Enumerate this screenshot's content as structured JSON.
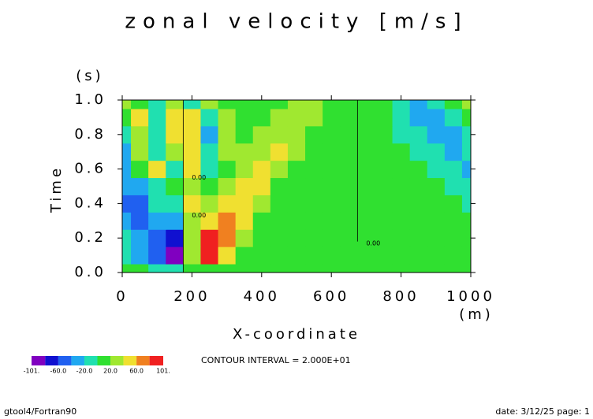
{
  "chart_data": {
    "type": "contour",
    "title": "zonal velocity [m/s]",
    "x_label": "X-coordinate",
    "x_unit": "(m)",
    "y_label": "Time",
    "y_unit": "(s)",
    "xlim": [
      0,
      1000
    ],
    "xticks": [
      0,
      200,
      400,
      600,
      800,
      1000
    ],
    "ylim": [
      0,
      1
    ],
    "yticks": [
      {
        "value": 0,
        "label": "0.0"
      },
      {
        "value": 0.2,
        "label": "0.2"
      },
      {
        "value": 0.4,
        "label": "0.4"
      },
      {
        "value": 0.6,
        "label": "0.6"
      },
      {
        "value": 0.8,
        "label": "0.8"
      },
      {
        "value": 1,
        "label": "1.0"
      }
    ],
    "x": [
      0,
      50,
      100,
      150,
      200,
      250,
      300,
      350,
      400,
      450,
      500,
      550,
      600,
      650,
      700,
      750,
      800,
      850,
      900,
      950,
      1000
    ],
    "y": [
      0,
      0.1,
      0.2,
      0.3,
      0.4,
      0.5,
      0.6,
      0.7,
      0.8,
      0.9,
      1
    ],
    "z": [
      [
        0,
        0,
        -5,
        -10,
        10,
        5,
        0,
        0,
        0,
        0,
        0,
        0,
        0,
        0,
        0,
        0,
        0,
        0,
        0,
        0,
        0
      ],
      [
        -10,
        -30,
        -50,
        -95,
        30,
        95,
        50,
        15,
        5,
        0,
        0,
        0,
        0,
        0,
        0,
        0,
        0,
        0,
        0,
        0,
        0
      ],
      [
        -20,
        -40,
        -60,
        -70,
        20,
        80,
        70,
        30,
        10,
        0,
        0,
        0,
        0,
        0,
        0,
        0,
        0,
        0,
        0,
        0,
        0
      ],
      [
        -40,
        -50,
        -30,
        -40,
        30,
        50,
        70,
        40,
        15,
        0,
        0,
        0,
        0,
        0,
        0,
        0,
        0,
        0,
        0,
        0,
        0
      ],
      [
        -50,
        -60,
        -20,
        -10,
        40,
        20,
        50,
        55,
        25,
        5,
        0,
        0,
        0,
        0,
        0,
        0,
        0,
        0,
        0,
        0,
        -10
      ],
      [
        -40,
        -30,
        -20,
        10,
        30,
        0,
        20,
        40,
        40,
        15,
        0,
        0,
        0,
        0,
        0,
        0,
        0,
        0,
        0,
        -10,
        -20
      ],
      [
        -40,
        10,
        40,
        -20,
        40,
        -20,
        10,
        30,
        40,
        30,
        5,
        0,
        0,
        0,
        0,
        0,
        0,
        0,
        -10,
        -20,
        -30
      ],
      [
        -30,
        20,
        -20,
        30,
        50,
        -20,
        20,
        20,
        30,
        40,
        20,
        5,
        0,
        0,
        0,
        0,
        0,
        -10,
        -20,
        -30,
        -20
      ],
      [
        -20,
        30,
        -20,
        40,
        40,
        -30,
        20,
        10,
        20,
        30,
        35,
        15,
        0,
        0,
        0,
        0,
        -10,
        -20,
        -40,
        -40,
        -10
      ],
      [
        10,
        40,
        -20,
        50,
        40,
        -20,
        20,
        0,
        10,
        20,
        30,
        25,
        5,
        0,
        0,
        0,
        -10,
        -30,
        -40,
        -20,
        10
      ],
      [
        30,
        0,
        -20,
        30,
        -20,
        20,
        0,
        0,
        10,
        15,
        25,
        30,
        10,
        0,
        0,
        0,
        -20,
        -30,
        -20,
        10,
        30
      ]
    ],
    "levels": [
      -101,
      -80,
      -60,
      -40,
      -20,
      0,
      20,
      40,
      60,
      80,
      101
    ],
    "colors": [
      "#8000c0",
      "#1010d0",
      "#2060f0",
      "#20a8f0",
      "#20e0b0",
      "#30e030",
      "#a0e830",
      "#f0e030",
      "#f08020",
      "#f02020"
    ],
    "level_ticks": [
      {
        "value": -101,
        "label": "-101."
      },
      {
        "value": -60,
        "label": "-60.0"
      },
      {
        "value": -20,
        "label": "-20.0"
      },
      {
        "value": 20,
        "label": "20.0"
      },
      {
        "value": 60,
        "label": "60.0"
      },
      {
        "value": 101,
        "label": "101."
      }
    ],
    "annotations": [
      {
        "text": "0.00",
        "x": 200,
        "y": 0.55
      },
      {
        "text": "0.00",
        "x": 200,
        "y": 0.33
      },
      {
        "text": "0.00",
        "x": 700,
        "y": 0.17
      }
    ],
    "contour_interval": "CONTOUR INTERVAL = 2.000E+01",
    "footer_left": "gtool4/Fortran90",
    "footer_right": "date: 3/12/25 page: 1"
  }
}
